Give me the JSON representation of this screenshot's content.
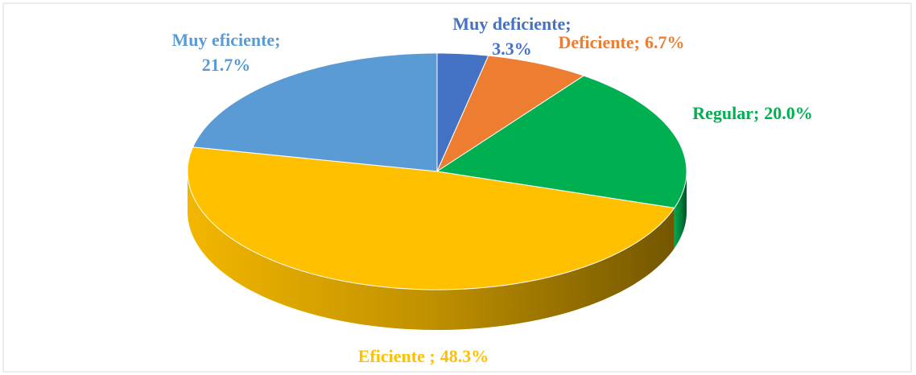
{
  "chart_data": {
    "type": "pie",
    "categories": [
      "Muy deficiente;",
      "Deficiente;",
      "Regular;",
      "Eficiente ;",
      "Muy eficiente;"
    ],
    "values": [
      3.3,
      6.7,
      20.0,
      48.3,
      21.7
    ],
    "value_labels": [
      "3.3%",
      "6.7%",
      "20.0%",
      "48.3%",
      "21.7%"
    ],
    "colors": [
      "#4472c4",
      "#ed7d31",
      "#00b050",
      "#ffc000",
      "#5b9bd5"
    ]
  }
}
